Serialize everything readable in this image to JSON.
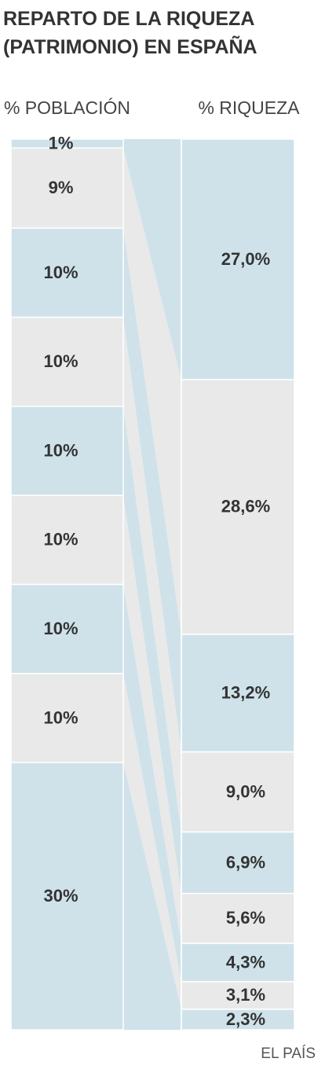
{
  "chart_data": {
    "type": "flow",
    "title": "REPARTO DE LA RIQUEZA (PATRIMONIO) EN ESPAÑA",
    "source": "EL PAÍS",
    "colors": [
      "#cfe2ea",
      "#e9e9e9"
    ],
    "series": [
      {
        "name": "% POBLACIÓN",
        "values": [
          1,
          9,
          10,
          10,
          10,
          10,
          10,
          10,
          30
        ],
        "value_labels": [
          "1%",
          "9%",
          "10%",
          "10%",
          "10%",
          "10%",
          "10%",
          "10%",
          "30%"
        ]
      },
      {
        "name": "% RIQUEZA",
        "values": [
          27.0,
          28.6,
          13.2,
          9.0,
          6.9,
          5.6,
          4.3,
          3.1,
          2.3
        ],
        "value_labels": [
          "27,0%",
          "28,6%",
          "13,2%",
          "9,0%",
          "6,9%",
          "5,6%",
          "4,3%",
          "3,1%",
          "2,3%"
        ]
      }
    ]
  }
}
